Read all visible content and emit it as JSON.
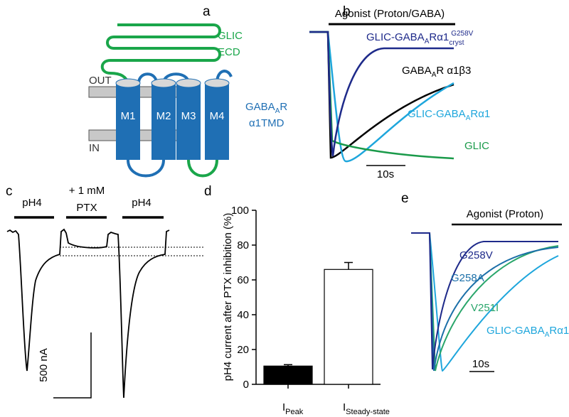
{
  "panels": {
    "a": {
      "label": "a",
      "glic": "GLIC",
      "ecd": "ECD",
      "out": "OUT",
      "in": "IN",
      "helices": [
        "M1",
        "M2",
        "M3",
        "M4"
      ],
      "receptor": [
        "GABA",
        "A",
        "R"
      ],
      "tmd": "α1TMD"
    },
    "b": {
      "label": "b",
      "agonist": "Agonist (Proton/GABA)",
      "mutant": [
        "GLIC-GABA",
        "A",
        "Rα1",
        "G258V",
        "cryst"
      ],
      "a1b3": [
        "GABA",
        "A",
        "R α1β3"
      ],
      "chimera": [
        "GLIC-GABA",
        "A",
        "Rα1"
      ],
      "glic": "GLIC",
      "scale": "10s"
    },
    "c": {
      "label": "c",
      "pulse1": "pH4",
      "ptx": [
        "+ 1 mM",
        "PTX"
      ],
      "pulse2": "pH4",
      "scale": "500 nA"
    },
    "e": {
      "label": "e",
      "agonist": "Agonist (Proton)",
      "traces": [
        "G258V",
        "G258A",
        "V251I"
      ],
      "chimera": [
        "GLIC-GABA",
        "A",
        "Rα1"
      ],
      "scale": "10s"
    }
  },
  "chart_data": {
    "type": "bar",
    "label": "d",
    "ylabel": "pH4 current after PTX inhibition (%)",
    "categories": [
      [
        "I",
        "Peak"
      ],
      [
        "I",
        "Steady-state"
      ]
    ],
    "values": [
      10.5,
      66
    ],
    "errors": [
      0.8,
      4
    ],
    "colors": [
      "#000000",
      "#ffffff"
    ],
    "ylim": [
      0,
      100
    ],
    "yticks": [
      0,
      20,
      40,
      60,
      80,
      100
    ]
  }
}
